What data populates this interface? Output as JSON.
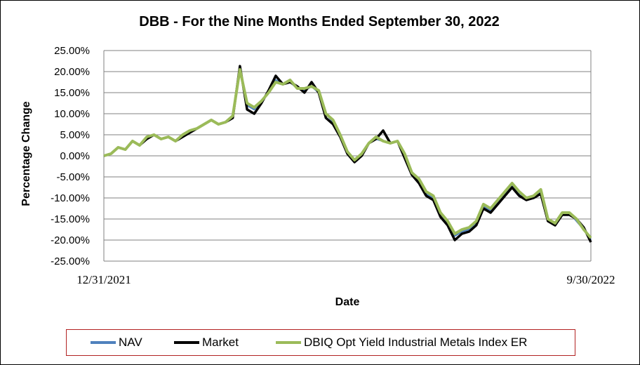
{
  "chart_data": {
    "type": "line",
    "title": "DBB - For the Nine Months Ended September 30, 2022",
    "xlabel": "Date",
    "ylabel": "Percentage Change",
    "x_tick_labels": [
      "12/31/2021",
      "9/30/2022"
    ],
    "y_tick_labels": [
      "25.00%",
      "20.00%",
      "15.00%",
      "10.00%",
      "5.00%",
      "0.00%",
      "-5.00%",
      "-10.00%",
      "-15.00%",
      "-20.00%",
      "-25.00%"
    ],
    "ylim": [
      -25,
      25
    ],
    "grid": true,
    "legend_position": "bottom",
    "x": [
      0,
      4,
      8,
      12,
      16,
      20,
      24,
      28,
      32,
      36,
      40,
      44,
      48,
      52,
      56,
      60,
      64,
      68,
      72,
      76,
      80,
      84,
      88,
      92,
      96,
      100,
      104,
      108,
      112,
      116,
      120,
      124,
      128,
      132,
      136,
      140,
      144,
      148,
      152,
      156,
      160,
      164,
      168,
      172,
      176,
      180,
      184,
      188,
      192,
      196,
      200,
      204,
      208,
      212,
      216,
      220,
      224,
      228,
      232,
      236,
      240,
      244,
      248,
      252,
      256,
      260,
      264,
      268,
      272
    ],
    "series": [
      {
        "name": "NAV",
        "color": "#4f81bd",
        "values": [
          0.0,
          0.5,
          2.0,
          1.5,
          3.5,
          2.5,
          4.0,
          5.0,
          4.0,
          4.5,
          3.5,
          4.5,
          5.5,
          6.5,
          7.5,
          8.5,
          7.5,
          8.0,
          9.0,
          21.0,
          12.0,
          11.0,
          13.0,
          15.0,
          18.0,
          17.0,
          17.5,
          16.0,
          15.5,
          16.5,
          15.0,
          10.0,
          8.0,
          5.0,
          1.0,
          -1.0,
          0.0,
          3.0,
          4.0,
          3.5,
          3.0,
          3.5,
          0.0,
          -4.0,
          -6.0,
          -9.0,
          -10.0,
          -14.0,
          -16.0,
          -19.0,
          -18.0,
          -17.5,
          -16.0,
          -12.0,
          -13.0,
          -11.0,
          -9.0,
          -7.0,
          -9.0,
          -10.0,
          -9.5,
          -8.5,
          -15.0,
          -16.5,
          -14.0,
          -13.5,
          -15.5,
          -17.5,
          -20.0
        ],
        "valuesNote": "approximate"
      },
      {
        "name": "Market",
        "color": "#000000",
        "values": [
          0.0,
          0.5,
          2.0,
          1.5,
          3.5,
          2.5,
          4.0,
          5.0,
          4.0,
          4.5,
          3.5,
          4.5,
          5.5,
          6.5,
          7.5,
          8.5,
          7.5,
          8.0,
          9.0,
          21.3,
          11.0,
          10.0,
          12.5,
          15.5,
          19.0,
          17.0,
          17.5,
          16.5,
          15.0,
          17.5,
          15.0,
          9.0,
          7.5,
          4.5,
          0.5,
          -1.5,
          0.0,
          3.0,
          4.0,
          6.0,
          3.0,
          3.5,
          -0.5,
          -4.5,
          -6.5,
          -9.5,
          -10.5,
          -14.5,
          -16.5,
          -20.0,
          -18.5,
          -18.0,
          -16.5,
          -12.5,
          -13.5,
          -11.5,
          -9.5,
          -7.5,
          -9.5,
          -10.5,
          -10.0,
          -9.0,
          -15.5,
          -16.5,
          -14.0,
          -14.0,
          -15.0,
          -17.0,
          -20.5
        ]
      },
      {
        "name": "DBIQ Opt Yield Industrial Metals Index ER",
        "color": "#9bbb59",
        "values": [
          0.0,
          0.5,
          2.0,
          1.5,
          3.5,
          2.5,
          4.5,
          5.0,
          4.0,
          4.5,
          3.5,
          5.0,
          6.0,
          6.5,
          7.5,
          8.5,
          7.5,
          8.0,
          9.5,
          20.5,
          12.5,
          11.5,
          13.0,
          15.0,
          17.5,
          17.0,
          18.0,
          16.0,
          16.0,
          16.5,
          15.5,
          10.0,
          8.5,
          5.0,
          1.0,
          -1.0,
          0.5,
          3.0,
          4.5,
          3.5,
          3.0,
          3.5,
          0.5,
          -4.0,
          -5.5,
          -8.5,
          -9.5,
          -13.5,
          -15.5,
          -18.5,
          -17.5,
          -17.0,
          -15.5,
          -11.5,
          -12.5,
          -10.5,
          -8.5,
          -6.5,
          -8.5,
          -10.0,
          -9.5,
          -8.0,
          -15.0,
          -16.0,
          -13.5,
          -13.5,
          -15.0,
          -17.5,
          -19.5
        ]
      }
    ]
  },
  "legend": {
    "items": [
      {
        "label": "NAV",
        "color": "#4f81bd"
      },
      {
        "label": "Market",
        "color": "#000000"
      },
      {
        "label": "DBIQ Opt Yield Industrial Metals Index ER",
        "color": "#9bbb59"
      }
    ]
  }
}
